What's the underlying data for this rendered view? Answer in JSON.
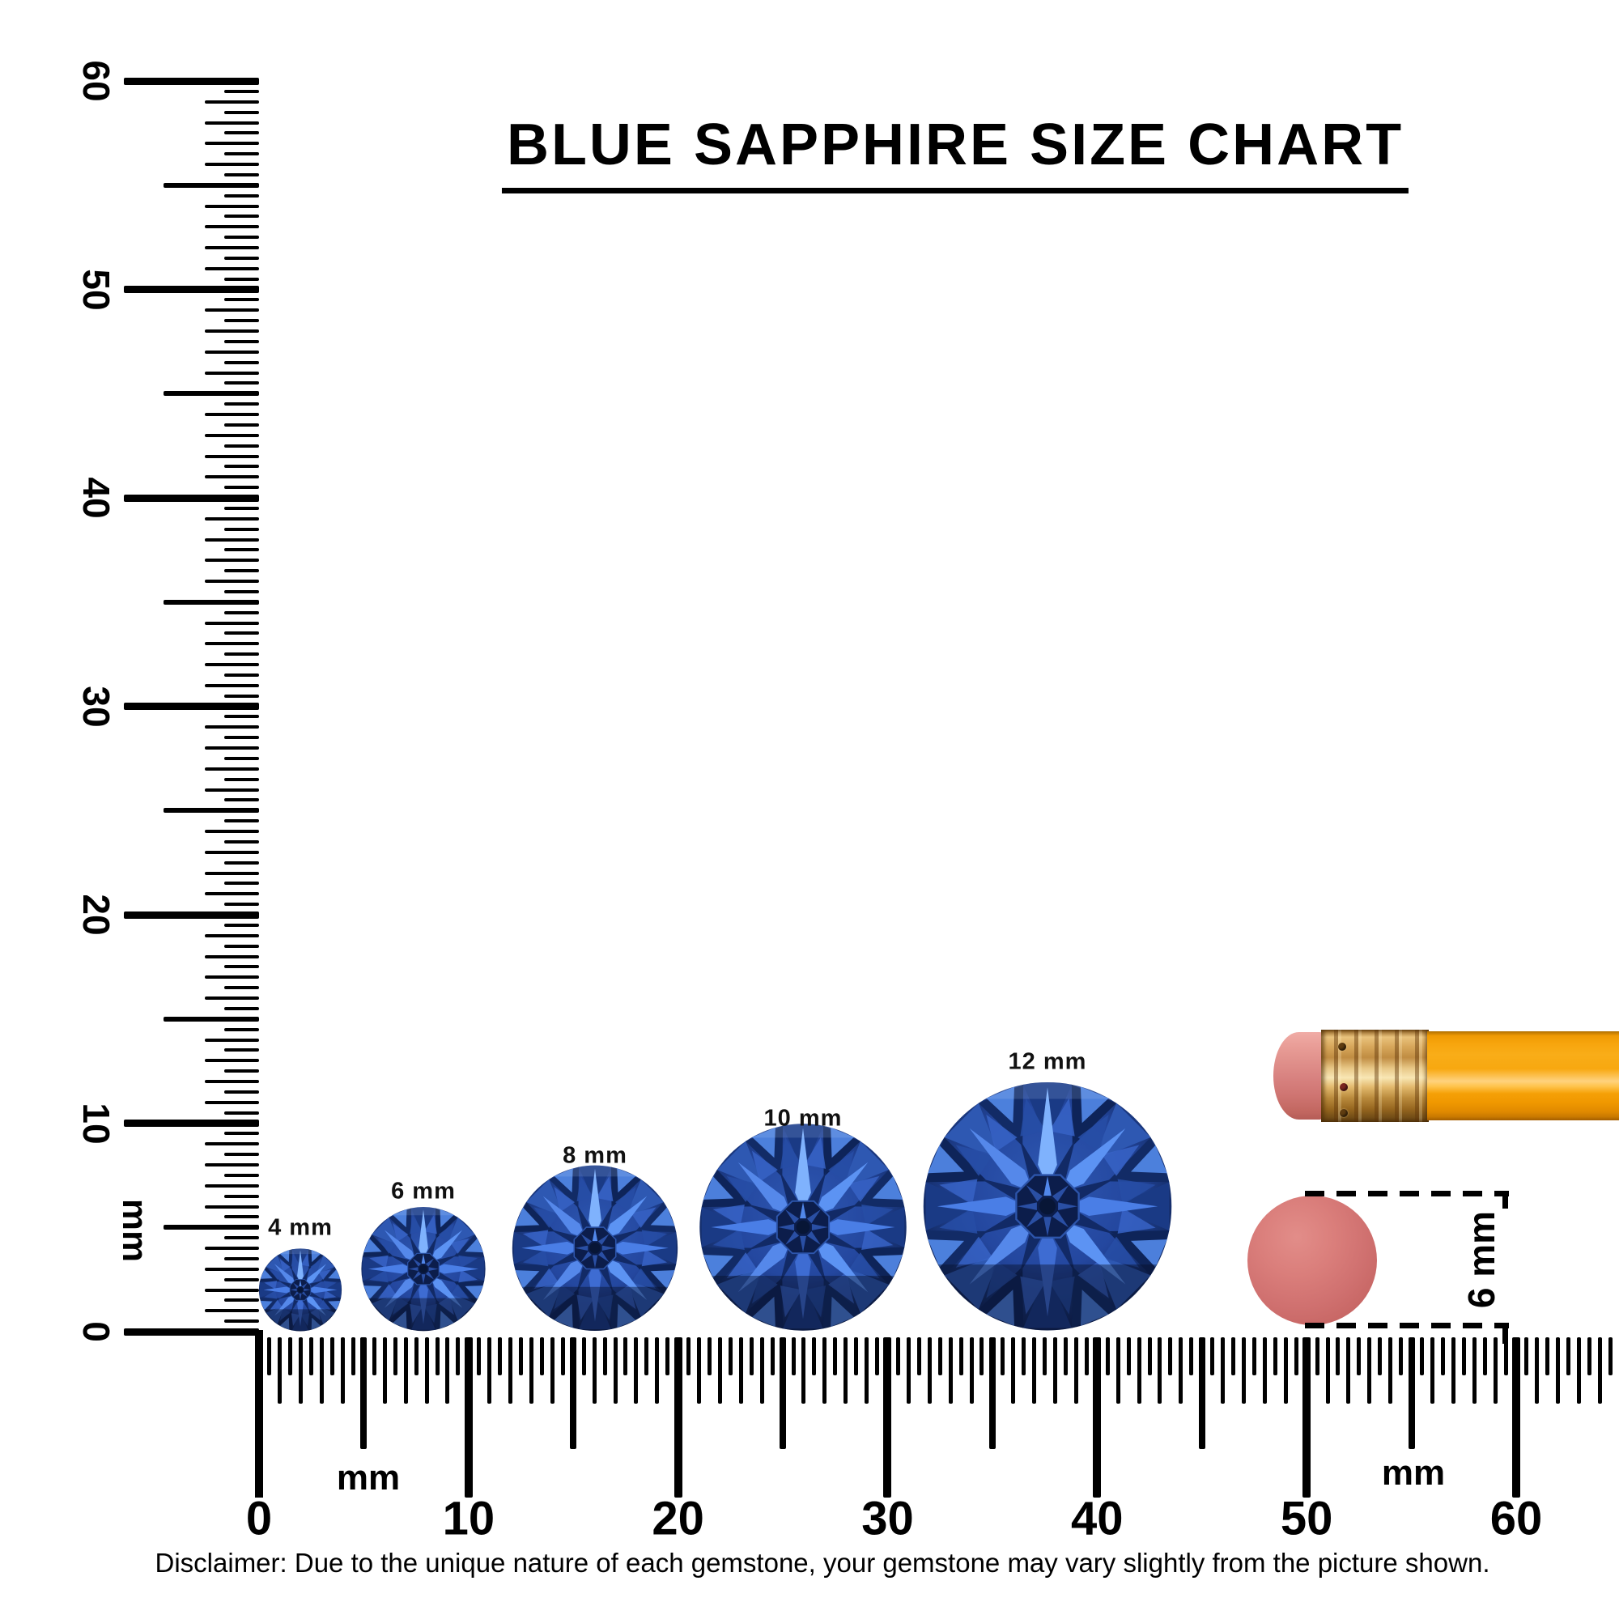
{
  "title": {
    "text": "BLUE SAPPHIRE SIZE CHART"
  },
  "rulers": {
    "vertical": {
      "unit": "mm",
      "tick_labels": [
        "0",
        "10",
        "20",
        "30",
        "40",
        "50",
        "60"
      ],
      "range_mm": [
        0,
        60
      ],
      "minor_step_mm": 0.5
    },
    "horizontal": {
      "unit": "mm",
      "tick_labels": [
        "0",
        "10",
        "20",
        "30",
        "40",
        "50",
        "60"
      ],
      "range_mm": [
        0,
        64.5
      ],
      "minor_step_mm": 0.5
    }
  },
  "gems": [
    {
      "label": "4 mm",
      "size_mm": 4
    },
    {
      "label": "6 mm",
      "size_mm": 6
    },
    {
      "label": "8 mm",
      "size_mm": 8
    },
    {
      "label": "10 mm",
      "size_mm": 10
    },
    {
      "label": "12 mm",
      "size_mm": 12
    }
  ],
  "comparison": {
    "eraser_dimension_label": "6 mm",
    "eraser_size_mm": 6
  },
  "disclaimer": "Disclaimer: Due to the unique nature of each gemstone, your gemstone may vary slightly from the picture shown.",
  "colors": {
    "ink": "#000000",
    "gem": {
      "bright": "#7fb2fd",
      "light": "#5c93f3",
      "mid": "#2e58b2",
      "deep": "#16306f",
      "ring_dark": "#0e2459",
      "ring_alt": "#1a3a85",
      "ring_alt2": "#122b66",
      "core": "#081636"
    },
    "pencil": {
      "body": "#f6a30c",
      "body_highlight": "#ffd27e",
      "ferrule": "#d8a859",
      "ferrule_dark": "#6e4a16",
      "eraser_tip": "#dd8983"
    },
    "round_eraser": "#d07170"
  }
}
